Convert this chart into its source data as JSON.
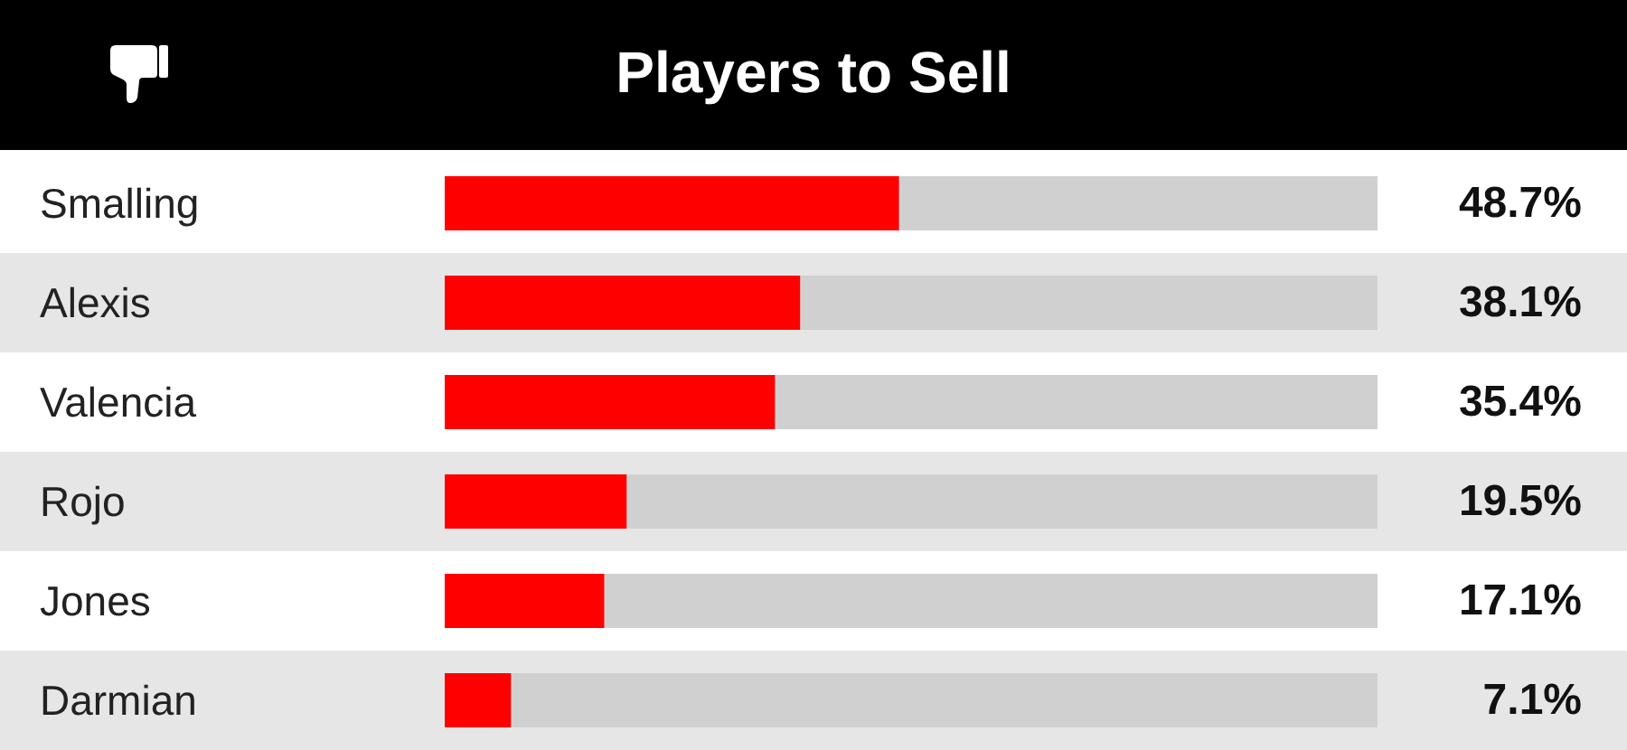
{
  "chart_data": {
    "type": "bar",
    "orientation": "horizontal",
    "title": "Players to Sell",
    "categories": [
      "Smalling",
      "Alexis",
      "Valencia",
      "Rojo",
      "Jones",
      "Darmian"
    ],
    "values": [
      48.7,
      38.1,
      35.4,
      19.5,
      17.1,
      7.1
    ],
    "color": "#ff0000",
    "value_labels": [
      "48.7%",
      "38.1%",
      "35.4%",
      "19.5%",
      "17.1%",
      "7.1%"
    ],
    "xlim": [
      0,
      100
    ],
    "tick_labels": "y"
  }
}
